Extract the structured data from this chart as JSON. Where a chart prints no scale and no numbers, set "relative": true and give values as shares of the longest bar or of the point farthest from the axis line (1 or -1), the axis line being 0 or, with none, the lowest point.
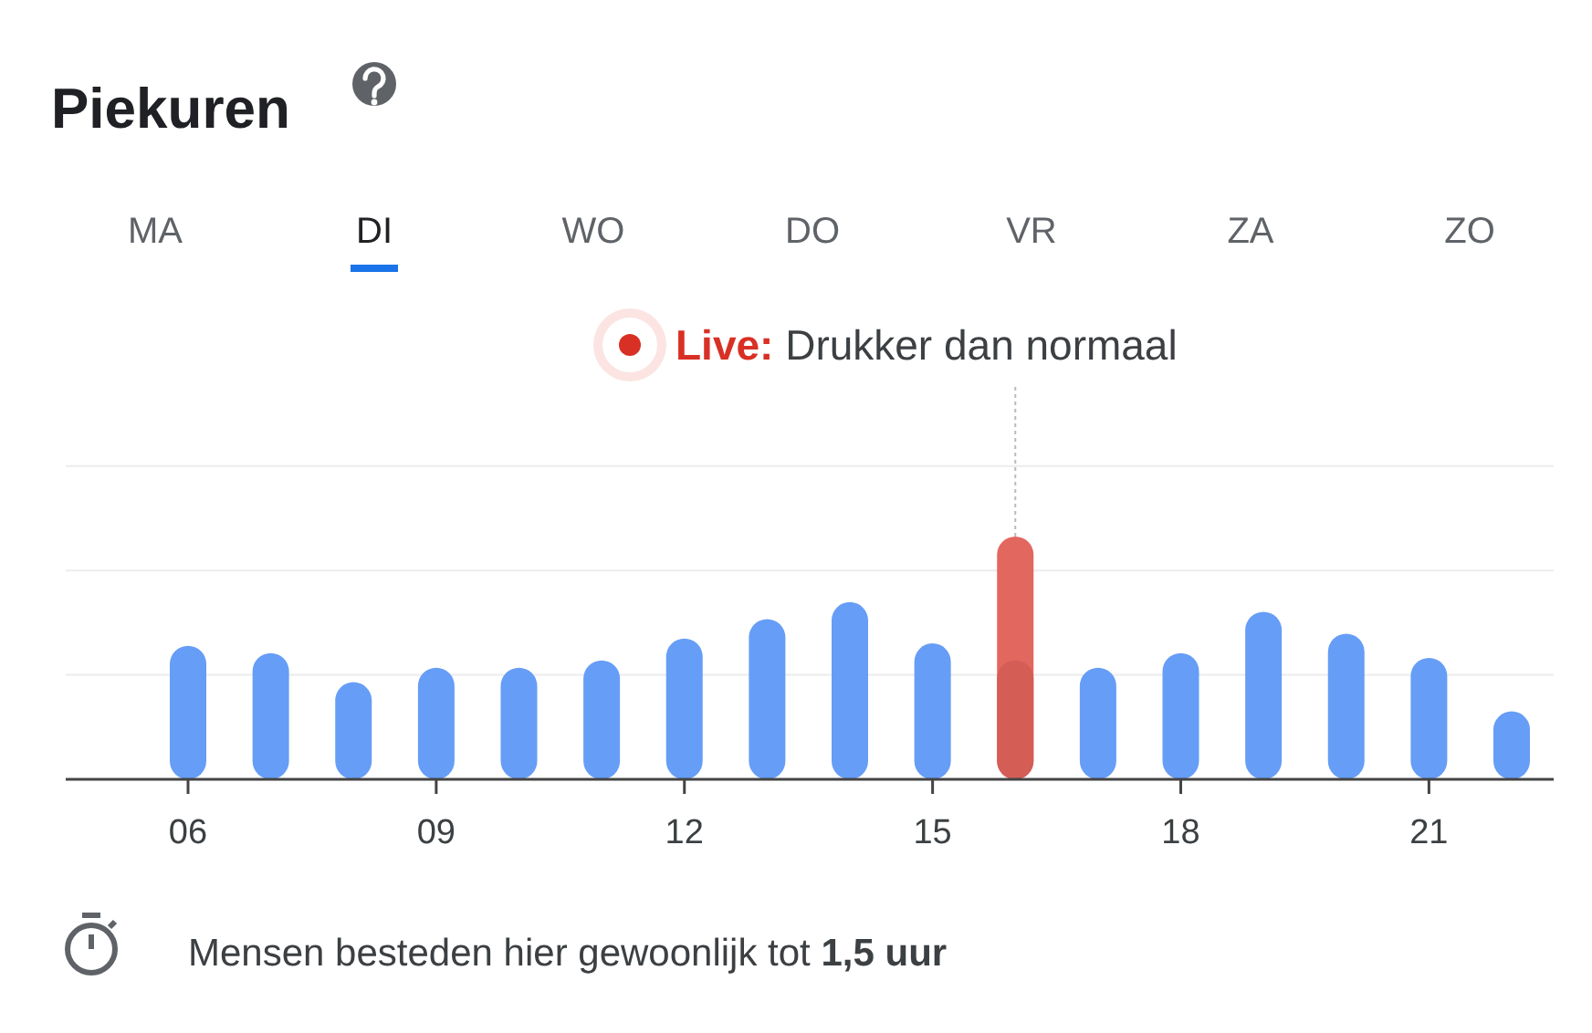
{
  "chart_data": {
    "type": "bar",
    "title": "Piekuren",
    "relative": true,
    "ref_lines": [
      {
        "axis": "y",
        "value": 0.43,
        "color": "#ececec"
      },
      {
        "axis": "y",
        "value": 0.86,
        "color": "#ececec"
      },
      {
        "axis": "y",
        "value": 1.29,
        "color": "#ececec"
      }
    ],
    "categories": [
      "06",
      null,
      null,
      "09",
      null,
      null,
      "12",
      null,
      null,
      "15",
      null,
      null,
      "18",
      null,
      null,
      "21",
      null
    ],
    "series": [
      {
        "color": "#e2675e",
        "values": [
          null,
          null,
          null,
          null,
          null,
          null,
          null,
          null,
          null,
          null,
          1,
          null,
          null,
          null,
          null,
          null,
          null
        ]
      },
      {
        "colors": [
          "#669df6",
          "#669df6",
          "#669df6",
          "#669df6",
          "#669df6",
          "#669df6",
          "#669df6",
          "#669df6",
          "#669df6",
          "#669df6",
          "#d45d56",
          "#669df6",
          "#669df6",
          "#669df6",
          "#669df6",
          "#669df6",
          "#669df6"
        ],
        "values": [
          0.55,
          0.52,
          0.4,
          0.46,
          0.46,
          0.49,
          0.58,
          0.66,
          0.73,
          0.56,
          0.49,
          0.46,
          0.52,
          0.69,
          0.6,
          0.5,
          0.28
        ]
      }
    ],
    "annotations": [
      "MA",
      "DI",
      "WO",
      "DO",
      "VR",
      "ZA",
      "ZO",
      "Live: Drukker dan normaal",
      "Mensen besteden hier gewoonlijk tot 1,5 uur"
    ]
  }
}
